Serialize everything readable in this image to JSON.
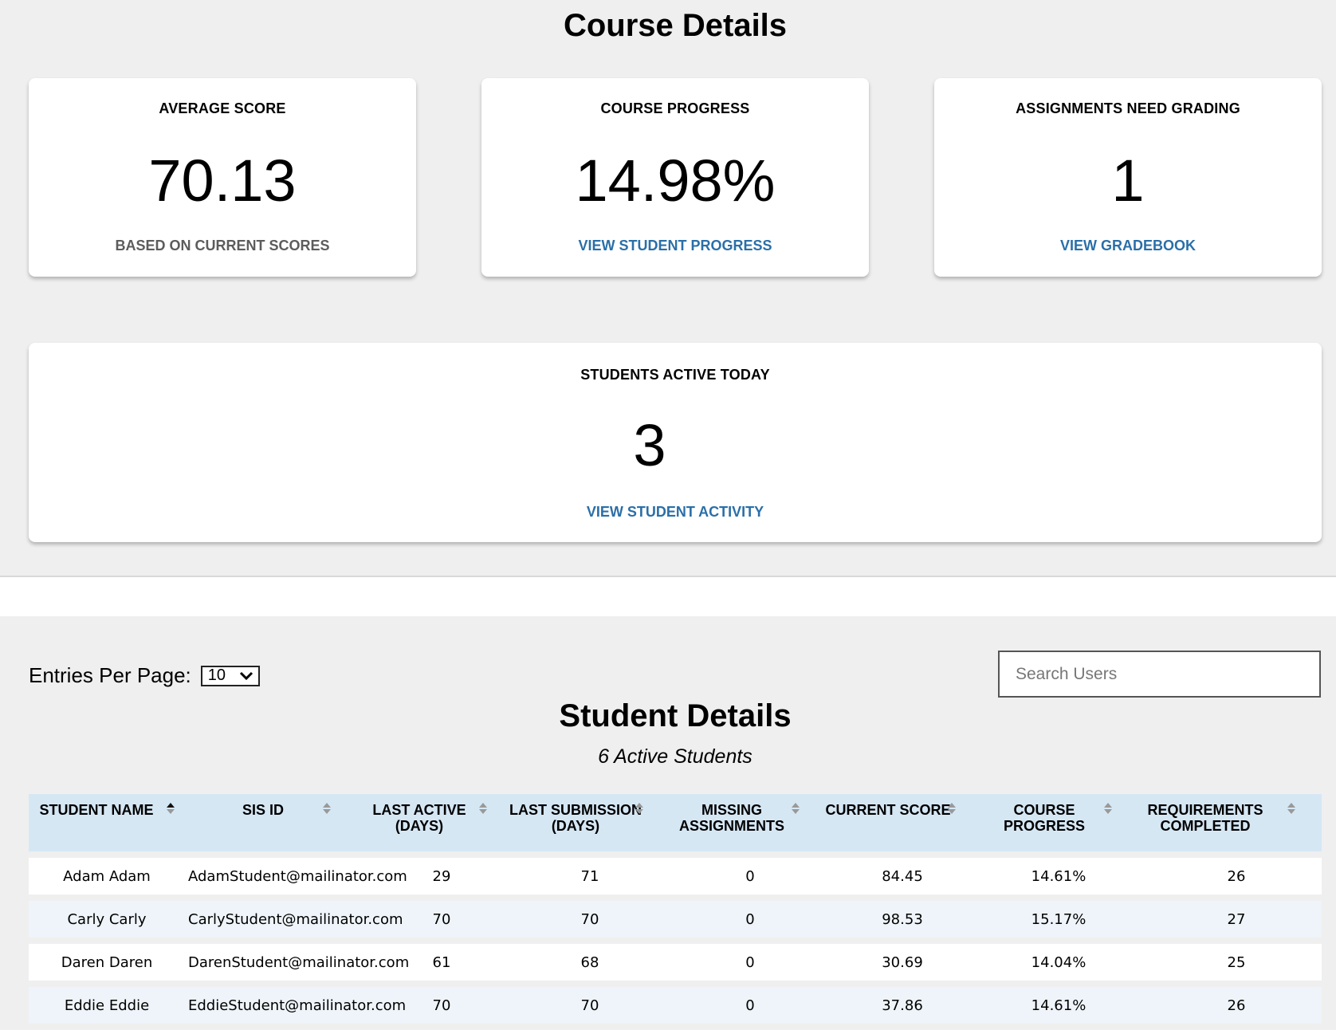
{
  "header": {
    "title": "Course Details"
  },
  "cards": {
    "average_score": {
      "label": "AVERAGE SCORE",
      "value": "70.13",
      "sub": "BASED ON CURRENT SCORES"
    },
    "course_progress": {
      "label": "COURSE PROGRESS",
      "value": "14.98%",
      "link": "VIEW STUDENT PROGRESS"
    },
    "assignments": {
      "label": "ASSIGNMENTS NEED GRADING",
      "value": "1",
      "link": "VIEW GRADEBOOK"
    },
    "active_today": {
      "label": "STUDENTS ACTIVE TODAY",
      "value": "3",
      "link": "VIEW STUDENT ACTIVITY"
    }
  },
  "controls": {
    "entries_label": "Entries Per Page:",
    "entries_value": "10",
    "search_placeholder": "Search Users"
  },
  "section": {
    "title": "Student Details",
    "subtitle": "6 Active Students"
  },
  "table": {
    "columns": [
      {
        "line1": "STUDENT NAME",
        "line2": ""
      },
      {
        "line1": "SIS ID",
        "line2": ""
      },
      {
        "line1": "LAST ACTIVE",
        "line2": "(DAYS)"
      },
      {
        "line1": "LAST SUBMISSION",
        "line2": "(DAYS)"
      },
      {
        "line1": "MISSING",
        "line2": "ASSIGNMENTS"
      },
      {
        "line1": "CURRENT SCORE",
        "line2": ""
      },
      {
        "line1": "COURSE",
        "line2": "PROGRESS"
      },
      {
        "line1": "REQUIREMENTS",
        "line2": "COMPLETED"
      }
    ],
    "rows": [
      [
        "Adam Adam",
        "AdamStudent@mailinator.com",
        "29",
        "71",
        "0",
        "84.45",
        "14.61%",
        "26"
      ],
      [
        "Carly Carly",
        "CarlyStudent@mailinator.com",
        "70",
        "70",
        "0",
        "98.53",
        "15.17%",
        "27"
      ],
      [
        "Daren Daren",
        "DarenStudent@mailinator.com",
        "61",
        "68",
        "0",
        "30.69",
        "14.04%",
        "25"
      ],
      [
        "Eddie Eddie",
        "EddieStudent@mailinator.com",
        "70",
        "70",
        "0",
        "37.86",
        "14.61%",
        "26"
      ]
    ]
  }
}
